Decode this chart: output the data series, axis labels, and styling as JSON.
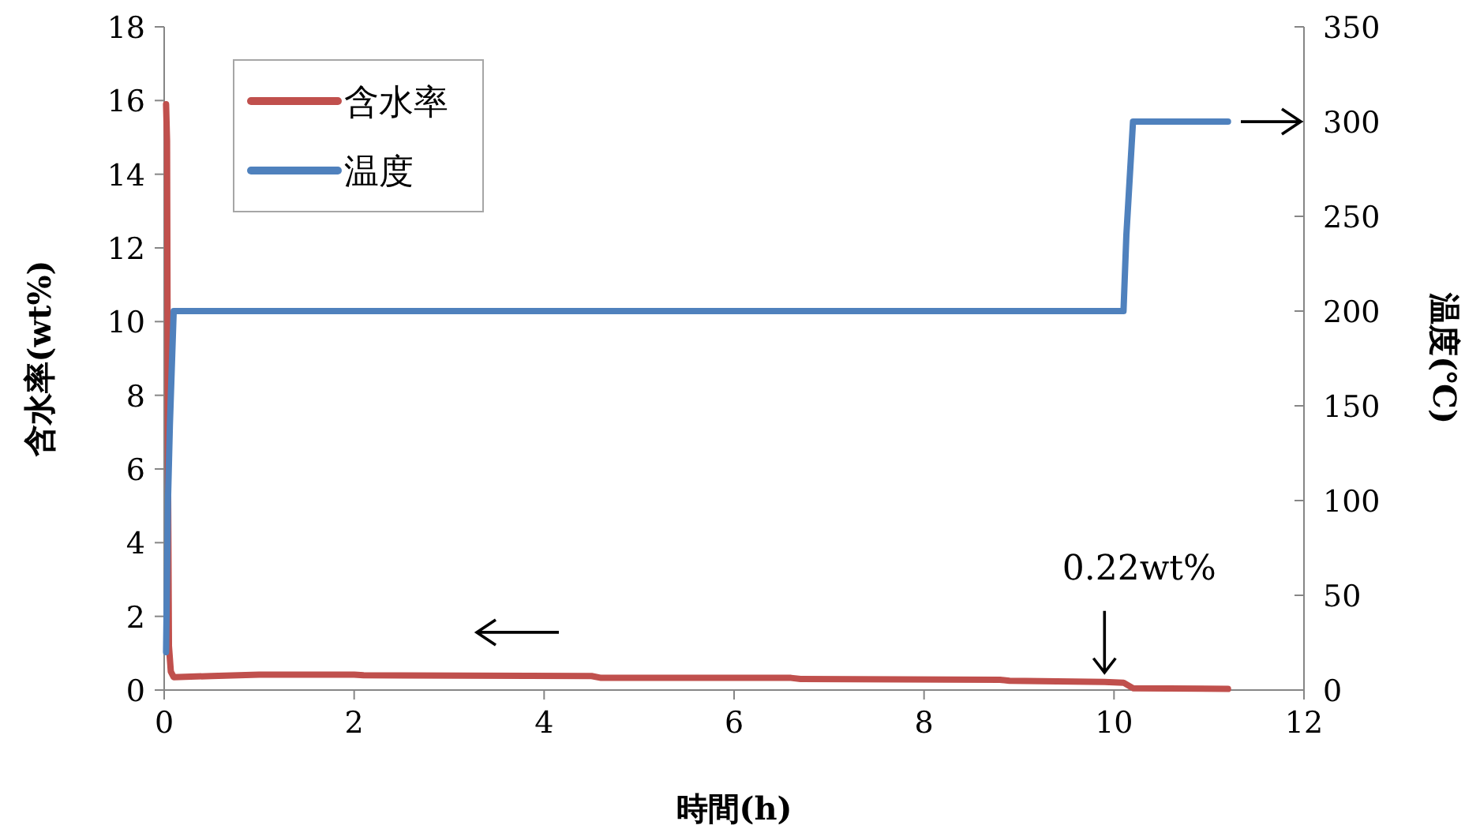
{
  "chart_data": {
    "type": "line",
    "xlabel": "時間(h)",
    "ylabel": "含水率(wt%)",
    "y2label": "温度(℃)",
    "xlim": [
      0,
      12
    ],
    "xticks": [
      0,
      2,
      4,
      6,
      8,
      10,
      12
    ],
    "ylim": [
      0,
      18
    ],
    "yticks": [
      0,
      2,
      4,
      6,
      8,
      10,
      12,
      14,
      16,
      18
    ],
    "y2lim": [
      0,
      350
    ],
    "y2ticks": [
      0,
      50,
      100,
      150,
      200,
      250,
      300,
      350
    ],
    "legend": "top left",
    "series": [
      {
        "name": "含水率",
        "color": "#c0504d",
        "x": [
          0.02,
          0.03,
          0.04,
          0.05,
          0.07,
          0.1,
          0.5,
          1,
          2,
          2.1,
          4.5,
          4.6,
          6.6,
          6.7,
          8.8,
          8.9,
          9.9,
          10.1,
          10.2,
          11.2
        ],
        "values": [
          15.9,
          14.9,
          6,
          1.2,
          0.5,
          0.35,
          0.38,
          0.42,
          0.42,
          0.4,
          0.38,
          0.33,
          0.33,
          0.3,
          0.28,
          0.25,
          0.22,
          0.2,
          0.05,
          0.03
        ]
      },
      {
        "name": "温度",
        "color": "#4f81bd",
        "axis": "y2",
        "x": [
          0.02,
          0.04,
          0.06,
          0.08,
          0.1,
          0.12,
          10.1,
          10.13,
          10.2,
          11.2
        ],
        "values": [
          20,
          100,
          140,
          170,
          200,
          200,
          200,
          240,
          300,
          300
        ]
      }
    ],
    "annotations": [
      {
        "text": "0.22wt%",
        "x": 9.9,
        "y": 0.22
      }
    ]
  }
}
